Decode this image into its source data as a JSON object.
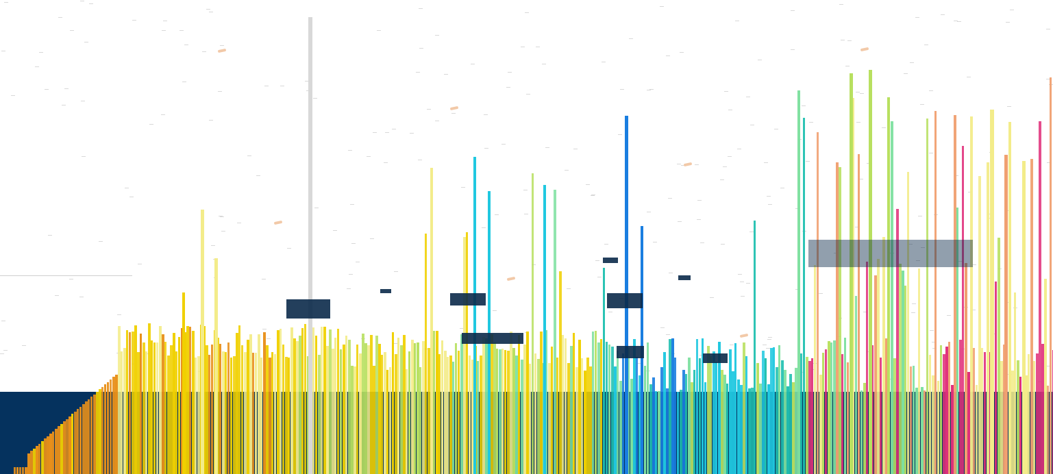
{
  "image": {
    "kind": "abstract-glitch-bar-artwork",
    "colors": {
      "background": "#ffffff",
      "band": "#05325e",
      "orange": "#e8901a",
      "yellow": "#f0d000",
      "pale_yellow": "#f3ec8a",
      "lime": "#b8e060",
      "mint": "#7ee0a0",
      "teal": "#20c0b0",
      "cyan": "#20c8e0",
      "blue": "#1a7ee0",
      "pink": "#e0307a",
      "peach": "#f0a070",
      "grey": "#d8d8d8",
      "dark": "#0b2a4a"
    }
  }
}
